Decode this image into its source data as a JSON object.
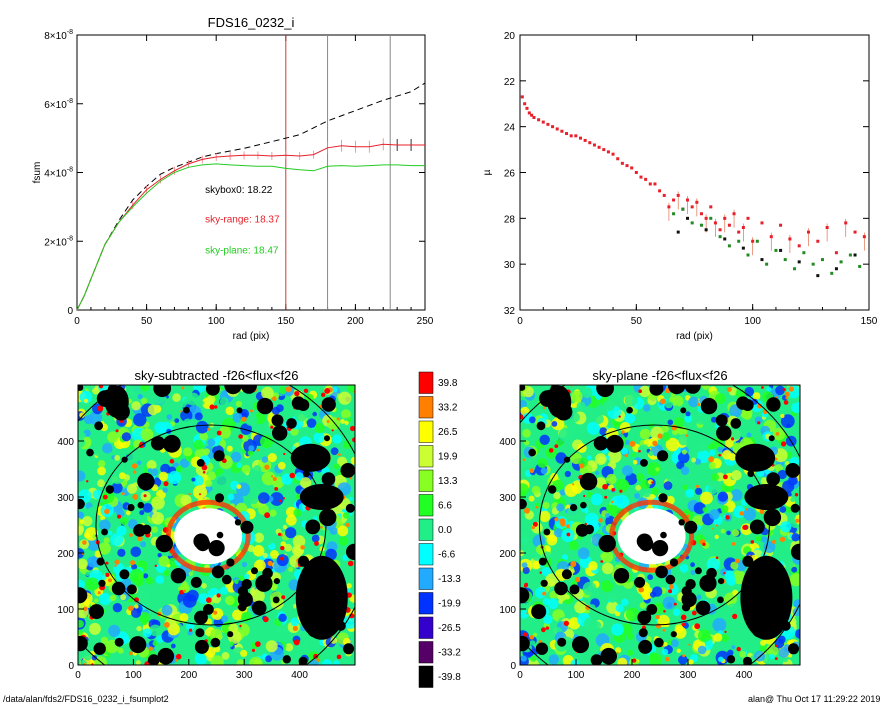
{
  "footer": {
    "path": "/data/alan/fds2/FDS16_0232_i_fsumplot2",
    "stamp": "alan@  Thu Oct 17 11:29:22 2019"
  },
  "chart_data": [
    {
      "type": "line",
      "title": "FDS16_0232_i",
      "xlabel": "rad (pix)",
      "ylabel": "fsum",
      "xlim": [
        0,
        250
      ],
      "ylim": [
        0,
        8e-08
      ],
      "xticks": [
        "0",
        "50",
        "100",
        "150",
        "200",
        "250"
      ],
      "yticks": [
        {
          "value": 0,
          "mantissa": "0",
          "exp": ""
        },
        {
          "value": 2e-08,
          "mantissa": "2×10",
          "exp": "-8"
        },
        {
          "value": 4e-08,
          "mantissa": "4×10",
          "exp": "-8"
        },
        {
          "value": 6e-08,
          "mantissa": "6×10",
          "exp": "-8"
        },
        {
          "value": 8e-08,
          "mantissa": "8×10",
          "exp": "-8"
        }
      ],
      "vlines": [
        {
          "x": 150,
          "color": "#d23a3a"
        },
        {
          "x": 180,
          "color": "#888888"
        },
        {
          "x": 225,
          "color": "#888888"
        }
      ],
      "annotations": [
        {
          "text": "skybox0: 18.22",
          "color": "#000000",
          "x": 92,
          "y": 3.4e-08
        },
        {
          "text": "sky-range: 18.37",
          "color": "#e8202a",
          "x": 92,
          "y": 2.55e-08
        },
        {
          "text": "sky-plane: 18.47",
          "color": "#22cc22",
          "x": 92,
          "y": 1.65e-08
        }
      ],
      "series": [
        {
          "color": "#000000",
          "style": "dash",
          "x": [
            0,
            5,
            10,
            20,
            30,
            40,
            50,
            60,
            70,
            80,
            90,
            100,
            120,
            140,
            160,
            180,
            200,
            220,
            240,
            250
          ],
          "y": [
            0,
            4e-09,
            9e-09,
            1.9e-08,
            2.6e-08,
            3.2e-08,
            3.6e-08,
            3.95e-08,
            4.15e-08,
            4.3e-08,
            4.45e-08,
            4.55e-08,
            4.7e-08,
            4.9e-08,
            5.1e-08,
            5.5e-08,
            5.8e-08,
            6.1e-08,
            6.35e-08,
            6.6e-08
          ]
        },
        {
          "color": "#e8202a",
          "style": "solid",
          "errorbars": true,
          "x": [
            0,
            5,
            10,
            20,
            30,
            40,
            50,
            60,
            70,
            80,
            90,
            100,
            110,
            120,
            130,
            140,
            150,
            160,
            170,
            180,
            190,
            200,
            210,
            220,
            230,
            240,
            250
          ],
          "y": [
            0,
            4e-09,
            9e-09,
            1.9e-08,
            2.55e-08,
            3.05e-08,
            3.5e-08,
            3.8e-08,
            4.05e-08,
            4.25e-08,
            4.38e-08,
            4.45e-08,
            4.48e-08,
            4.5e-08,
            4.5e-08,
            4.48e-08,
            4.5e-08,
            4.48e-08,
            4.52e-08,
            4.72e-08,
            4.78e-08,
            4.75e-08,
            4.75e-08,
            4.82e-08,
            4.8e-08,
            4.8e-08,
            4.8e-08
          ]
        },
        {
          "color": "#22cc22",
          "style": "solid",
          "x": [
            0,
            5,
            10,
            20,
            30,
            40,
            50,
            60,
            70,
            80,
            90,
            100,
            110,
            120,
            130,
            140,
            150,
            160,
            170,
            180,
            190,
            200,
            210,
            220,
            230,
            240,
            250
          ],
          "y": [
            0,
            4e-09,
            9e-09,
            1.9e-08,
            2.55e-08,
            3e-08,
            3.4e-08,
            3.75e-08,
            4e-08,
            4.15e-08,
            4.22e-08,
            4.25e-08,
            4.22e-08,
            4.2e-08,
            4.18e-08,
            4.18e-08,
            4.12e-08,
            4.08e-08,
            4.05e-08,
            4.18e-08,
            4.2e-08,
            4.18e-08,
            4.2e-08,
            4.22e-08,
            4.22e-08,
            4.2e-08,
            4.2e-08
          ]
        }
      ]
    },
    {
      "type": "scatter",
      "title": "",
      "xlabel": "rad (pix)",
      "ylabel": "µ",
      "xlim": [
        0,
        150
      ],
      "ylim": [
        32,
        20
      ],
      "xticks": [
        "0",
        "50",
        "100",
        "150"
      ],
      "yticks": [
        "20",
        "22",
        "24",
        "26",
        "28",
        "30",
        "32"
      ],
      "series": [
        {
          "color": "#e8202a",
          "x": [
            1,
            2,
            3,
            4,
            5,
            6,
            8,
            10,
            12,
            14,
            16,
            18,
            20,
            22,
            24,
            26,
            28,
            30,
            32,
            34,
            36,
            38,
            40,
            42,
            44,
            46,
            48,
            50,
            52,
            54,
            56,
            58,
            60,
            62,
            64,
            66,
            68,
            70,
            72,
            74,
            76,
            78,
            80,
            82,
            84,
            86,
            88,
            90,
            92,
            94,
            96,
            98,
            100,
            104,
            108,
            112,
            116,
            120,
            124,
            128,
            132,
            136,
            140,
            144,
            148
          ],
          "y": [
            22.7,
            23.0,
            23.2,
            23.4,
            23.5,
            23.6,
            23.7,
            23.8,
            23.9,
            24.0,
            24.1,
            24.2,
            24.3,
            24.4,
            24.4,
            24.5,
            24.6,
            24.7,
            24.8,
            24.9,
            25.0,
            25.1,
            25.2,
            25.4,
            25.6,
            25.7,
            25.8,
            26.0,
            26.2,
            26.3,
            26.5,
            26.5,
            26.8,
            27.0,
            27.5,
            27.2,
            27.0,
            27.6,
            27.2,
            27.5,
            27.3,
            27.8,
            28.0,
            27.5,
            28.2,
            28.5,
            28.0,
            28.3,
            27.8,
            28.6,
            28.4,
            28.0,
            29.0,
            28.2,
            28.8,
            28.3,
            28.9,
            29.2,
            28.6,
            29.0,
            28.4,
            29.5,
            28.2,
            28.6,
            28.8
          ]
        },
        {
          "color": "#228b22",
          "x": [
            66,
            70,
            74,
            78,
            82,
            86,
            90,
            94,
            98,
            102,
            106,
            110,
            114,
            118,
            122,
            126,
            130,
            134,
            138,
            142,
            146
          ],
          "y": [
            27.8,
            27.6,
            28.2,
            28.3,
            28.0,
            28.8,
            29.2,
            29.0,
            29.6,
            29.0,
            30.0,
            29.4,
            29.8,
            30.2,
            29.5,
            30.0,
            29.8,
            30.4,
            29.9,
            29.6,
            30.1
          ]
        },
        {
          "color": "#111111",
          "x": [
            68,
            72,
            80,
            88,
            96,
            104,
            112,
            120,
            128,
            136,
            144
          ],
          "y": [
            28.6,
            28.0,
            28.5,
            28.9,
            29.3,
            29.8,
            29.4,
            29.9,
            30.5,
            30.2,
            29.6
          ]
        }
      ]
    },
    {
      "type": "heatmap",
      "title": "sky-subtracted -f26<flux<f26",
      "xlim": [
        0,
        500
      ],
      "ylim": [
        0,
        500
      ],
      "xticks": [
        "0",
        "100",
        "200",
        "300",
        "400"
      ],
      "yticks": [
        "0",
        "100",
        "200",
        "300",
        "400"
      ]
    },
    {
      "type": "heatmap",
      "title": "sky-plane -f26<flux<f26",
      "xlim": [
        0,
        500
      ],
      "ylim": [
        0,
        500
      ],
      "xticks": [
        "0",
        "100",
        "200",
        "300",
        "400"
      ],
      "yticks": [
        "0",
        "100",
        "200",
        "300",
        "400"
      ]
    }
  ],
  "colorbar": {
    "levels": [
      {
        "label": "39.8",
        "color": "#ff0000"
      },
      {
        "label": "33.2",
        "color": "#ff8000"
      },
      {
        "label": "26.5",
        "color": "#ffff00"
      },
      {
        "label": "19.9",
        "color": "#ccff33"
      },
      {
        "label": "13.3",
        "color": "#88ff22"
      },
      {
        "label": "6.6",
        "color": "#22ff22"
      },
      {
        "label": "0.0",
        "color": "#22ee88"
      },
      {
        "label": "-6.6",
        "color": "#00ffff"
      },
      {
        "label": "-13.3",
        "color": "#22aaff"
      },
      {
        "label": "-19.9",
        "color": "#0033ff"
      },
      {
        "label": "-26.5",
        "color": "#3300cc"
      },
      {
        "label": "-33.2",
        "color": "#550066"
      },
      {
        "label": "-39.8",
        "color": "#000000"
      }
    ]
  }
}
